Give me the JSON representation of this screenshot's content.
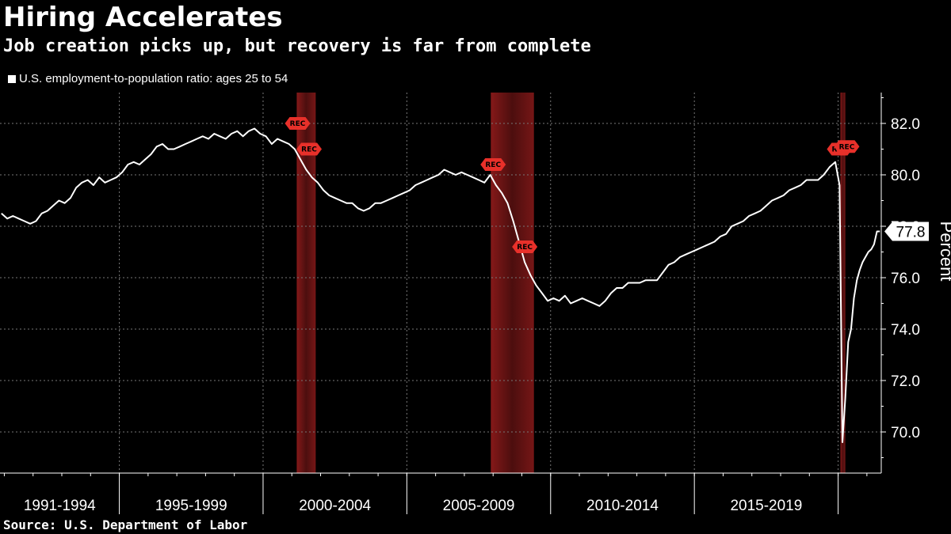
{
  "title": "Hiring Accelerates",
  "subtitle": "Job creation picks up, but recovery is far from complete",
  "source": "Source: U.S. Department of Labor",
  "colors": {
    "line": "#ffffff",
    "recession": "#8b1a1a",
    "rec_tag": "#e8302a",
    "grid": "#777777"
  },
  "chart_data": {
    "type": "line",
    "ylabel": "Percent",
    "ylim": [
      68.4,
      83.2
    ],
    "xlim": [
      1990.85,
      2021.5
    ],
    "yticks": [
      70.0,
      72.0,
      74.0,
      76.0,
      78.0,
      80.0,
      82.0
    ],
    "ytick_labels": [
      "70.0",
      "72.0",
      "74.0",
      "76.0",
      "78.0",
      "80.0",
      "82.0"
    ],
    "grid": true,
    "legend_position": "top-left",
    "period_labels": [
      {
        "label": "1991-1994",
        "start": 1990.85,
        "end": 1995
      },
      {
        "label": "1995-1999",
        "start": 1995,
        "end": 2000
      },
      {
        "label": "2000-2004",
        "start": 2000,
        "end": 2005
      },
      {
        "label": "2005-2009",
        "start": 2005,
        "end": 2010
      },
      {
        "label": "2010-2014",
        "start": 2010,
        "end": 2015
      },
      {
        "label": "2015-2019",
        "start": 2015,
        "end": 2020
      }
    ],
    "recessions": [
      {
        "start": 2001.17,
        "end": 2001.83
      },
      {
        "start": 2007.92,
        "end": 2009.42
      },
      {
        "start": 2020.08,
        "end": 2020.25
      }
    ],
    "rec_markers": [
      {
        "x": 2001.2,
        "y": 82.0,
        "label": "REC"
      },
      {
        "x": 2001.6,
        "y": 81.0,
        "label": "REC"
      },
      {
        "x": 2008.0,
        "y": 80.4,
        "label": "REC"
      },
      {
        "x": 2009.1,
        "y": 77.2,
        "label": "REC"
      },
      {
        "x": 2020.05,
        "y": 81.0,
        "label": "REC"
      },
      {
        "x": 2020.3,
        "y": 81.1,
        "label": "REC"
      }
    ],
    "last_value": 77.8,
    "last_value_label": "77.8",
    "series": [
      {
        "name": "U.S. employment-to-population ratio: ages 25 to 54",
        "x": [
          1990.9,
          1991.1,
          1991.3,
          1991.5,
          1991.7,
          1991.9,
          1992.1,
          1992.3,
          1992.5,
          1992.7,
          1992.9,
          1993.1,
          1993.3,
          1993.5,
          1993.7,
          1993.9,
          1994.1,
          1994.3,
          1994.5,
          1994.7,
          1994.9,
          1995.1,
          1995.3,
          1995.5,
          1995.7,
          1995.9,
          1996.1,
          1996.3,
          1996.5,
          1996.7,
          1996.9,
          1997.1,
          1997.3,
          1997.5,
          1997.7,
          1997.9,
          1998.1,
          1998.3,
          1998.5,
          1998.7,
          1998.9,
          1999.1,
          1999.3,
          1999.5,
          1999.7,
          1999.9,
          2000.1,
          2000.3,
          2000.5,
          2000.7,
          2000.9,
          2001.1,
          2001.3,
          2001.5,
          2001.7,
          2001.9,
          2002.1,
          2002.3,
          2002.5,
          2002.7,
          2002.9,
          2003.1,
          2003.3,
          2003.5,
          2003.7,
          2003.9,
          2004.1,
          2004.3,
          2004.5,
          2004.7,
          2004.9,
          2005.1,
          2005.3,
          2005.5,
          2005.7,
          2005.9,
          2006.1,
          2006.3,
          2006.5,
          2006.7,
          2006.9,
          2007.1,
          2007.3,
          2007.5,
          2007.7,
          2007.9,
          2008.1,
          2008.3,
          2008.5,
          2008.7,
          2008.9,
          2009.1,
          2009.3,
          2009.5,
          2009.7,
          2009.9,
          2010.1,
          2010.3,
          2010.5,
          2010.7,
          2010.9,
          2011.1,
          2011.3,
          2011.5,
          2011.7,
          2011.9,
          2012.1,
          2012.3,
          2012.5,
          2012.7,
          2012.9,
          2013.1,
          2013.3,
          2013.5,
          2013.7,
          2013.9,
          2014.1,
          2014.3,
          2014.5,
          2014.7,
          2014.9,
          2015.1,
          2015.3,
          2015.5,
          2015.7,
          2015.9,
          2016.1,
          2016.3,
          2016.5,
          2016.7,
          2016.9,
          2017.1,
          2017.3,
          2017.5,
          2017.7,
          2017.9,
          2018.1,
          2018.3,
          2018.5,
          2018.7,
          2018.9,
          2019.1,
          2019.3,
          2019.5,
          2019.7,
          2019.9,
          2020.05,
          2020.15,
          2020.25,
          2020.35,
          2020.45,
          2020.55,
          2020.65,
          2020.75,
          2020.85,
          2020.95,
          2021.05,
          2021.15,
          2021.25,
          2021.35,
          2021.45
        ],
        "y": [
          78.5,
          78.3,
          78.4,
          78.3,
          78.2,
          78.1,
          78.2,
          78.5,
          78.6,
          78.8,
          79.0,
          78.9,
          79.1,
          79.5,
          79.7,
          79.8,
          79.6,
          79.9,
          79.7,
          79.8,
          79.9,
          80.1,
          80.4,
          80.5,
          80.4,
          80.6,
          80.8,
          81.1,
          81.2,
          81.0,
          81.0,
          81.1,
          81.2,
          81.3,
          81.4,
          81.5,
          81.4,
          81.6,
          81.5,
          81.4,
          81.6,
          81.7,
          81.5,
          81.7,
          81.8,
          81.6,
          81.5,
          81.2,
          81.4,
          81.3,
          81.2,
          81.0,
          80.6,
          80.2,
          79.9,
          79.7,
          79.4,
          79.2,
          79.1,
          79.0,
          78.9,
          78.9,
          78.7,
          78.6,
          78.7,
          78.9,
          78.9,
          79.0,
          79.1,
          79.2,
          79.3,
          79.4,
          79.6,
          79.7,
          79.8,
          79.9,
          80.0,
          80.2,
          80.1,
          80.0,
          80.1,
          80.0,
          79.9,
          79.8,
          79.7,
          80.0,
          79.6,
          79.3,
          78.9,
          78.2,
          77.4,
          76.6,
          76.1,
          75.7,
          75.4,
          75.1,
          75.2,
          75.1,
          75.3,
          75.0,
          75.1,
          75.2,
          75.1,
          75.0,
          74.9,
          75.1,
          75.4,
          75.6,
          75.6,
          75.8,
          75.8,
          75.8,
          75.9,
          75.9,
          75.9,
          76.2,
          76.5,
          76.6,
          76.8,
          76.9,
          77.0,
          77.1,
          77.2,
          77.3,
          77.4,
          77.6,
          77.7,
          78.0,
          78.1,
          78.2,
          78.4,
          78.5,
          78.6,
          78.8,
          79.0,
          79.1,
          79.2,
          79.4,
          79.5,
          79.6,
          79.8,
          79.8,
          79.8,
          80.0,
          80.3,
          80.5,
          79.6,
          69.6,
          71.3,
          73.5,
          74.0,
          75.2,
          75.9,
          76.3,
          76.6,
          76.8,
          77.0,
          77.1,
          77.3,
          77.8,
          77.8
        ]
      }
    ]
  }
}
